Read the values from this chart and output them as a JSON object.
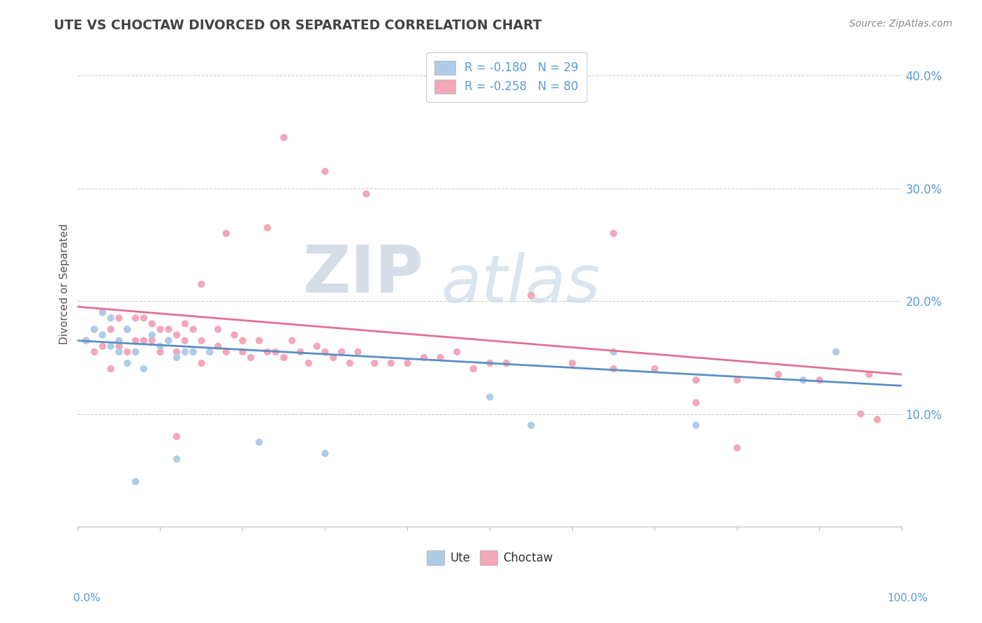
{
  "title": "UTE VS CHOCTAW DIVORCED OR SEPARATED CORRELATION CHART",
  "source": "Source: ZipAtlas.com",
  "ylabel": "Divorced or Separated",
  "legend_ute": "R = -0.180   N = 29",
  "legend_choctaw": "R = -0.258   N = 80",
  "ute_color": "#aecce8",
  "choctaw_color": "#f4a7b9",
  "ute_line_color": "#5b8ec4",
  "choctaw_line_color": "#e07090",
  "background_color": "#ffffff",
  "xlim": [
    0.0,
    1.0
  ],
  "ylim": [
    0.0,
    0.43
  ],
  "ute_line_x0": 0.0,
  "ute_line_y0": 0.165,
  "ute_line_x1": 1.0,
  "ute_line_y1": 0.125,
  "choc_line_x0": 0.0,
  "choc_line_y0": 0.195,
  "choc_line_x1": 1.0,
  "choc_line_y1": 0.135,
  "yticks": [
    0.1,
    0.2,
    0.3,
    0.4
  ],
  "ytick_labels": [
    "10.0%",
    "20.0%",
    "30.0%",
    "40.0%"
  ],
  "ute_x": [
    0.01,
    0.02,
    0.03,
    0.03,
    0.04,
    0.04,
    0.05,
    0.05,
    0.06,
    0.06,
    0.07,
    0.08,
    0.09,
    0.1,
    0.11,
    0.12,
    0.13,
    0.14,
    0.16,
    0.5,
    0.55,
    0.65,
    0.75,
    0.88,
    0.92,
    0.12,
    0.07,
    0.22,
    0.3
  ],
  "ute_y": [
    0.165,
    0.175,
    0.19,
    0.17,
    0.16,
    0.185,
    0.155,
    0.165,
    0.145,
    0.175,
    0.155,
    0.14,
    0.17,
    0.16,
    0.165,
    0.15,
    0.155,
    0.155,
    0.155,
    0.115,
    0.09,
    0.155,
    0.09,
    0.13,
    0.155,
    0.06,
    0.04,
    0.075,
    0.065
  ],
  "choc_x": [
    0.01,
    0.02,
    0.02,
    0.03,
    0.03,
    0.04,
    0.04,
    0.05,
    0.05,
    0.06,
    0.06,
    0.07,
    0.07,
    0.08,
    0.08,
    0.09,
    0.09,
    0.1,
    0.1,
    0.11,
    0.11,
    0.12,
    0.12,
    0.13,
    0.13,
    0.14,
    0.14,
    0.15,
    0.15,
    0.16,
    0.17,
    0.17,
    0.18,
    0.19,
    0.2,
    0.2,
    0.21,
    0.22,
    0.23,
    0.24,
    0.25,
    0.26,
    0.27,
    0.28,
    0.29,
    0.3,
    0.31,
    0.32,
    0.33,
    0.34,
    0.36,
    0.38,
    0.4,
    0.42,
    0.44,
    0.46,
    0.48,
    0.5,
    0.52,
    0.6,
    0.65,
    0.7,
    0.75,
    0.8,
    0.85,
    0.9,
    0.95,
    0.96,
    0.97,
    0.25,
    0.3,
    0.35,
    0.55,
    0.65,
    0.75,
    0.8,
    0.23,
    0.15,
    0.18,
    0.12
  ],
  "choc_y": [
    0.165,
    0.175,
    0.155,
    0.19,
    0.16,
    0.175,
    0.14,
    0.16,
    0.185,
    0.175,
    0.155,
    0.165,
    0.185,
    0.185,
    0.165,
    0.165,
    0.18,
    0.175,
    0.155,
    0.165,
    0.175,
    0.17,
    0.155,
    0.165,
    0.18,
    0.155,
    0.175,
    0.165,
    0.145,
    0.155,
    0.16,
    0.175,
    0.155,
    0.17,
    0.155,
    0.165,
    0.15,
    0.165,
    0.155,
    0.155,
    0.15,
    0.165,
    0.155,
    0.145,
    0.16,
    0.155,
    0.15,
    0.155,
    0.145,
    0.155,
    0.145,
    0.145,
    0.145,
    0.15,
    0.15,
    0.155,
    0.14,
    0.145,
    0.145,
    0.145,
    0.14,
    0.14,
    0.13,
    0.13,
    0.135,
    0.13,
    0.1,
    0.135,
    0.095,
    0.345,
    0.315,
    0.295,
    0.205,
    0.26,
    0.11,
    0.07,
    0.265,
    0.215,
    0.26,
    0.08
  ]
}
